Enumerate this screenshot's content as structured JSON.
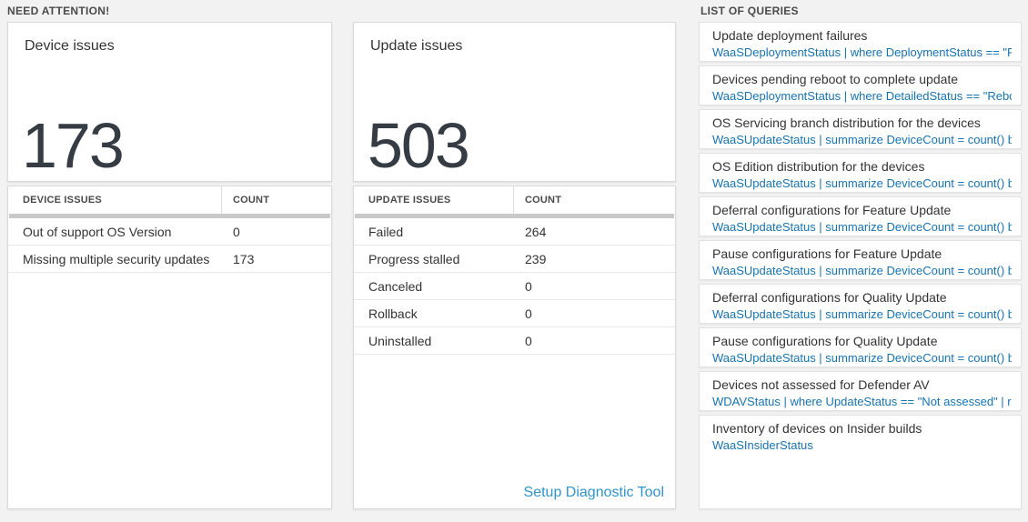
{
  "colors": {
    "page_bg": "#f2f2f2",
    "card_bg": "#ffffff",
    "text_dark": "#333333",
    "stat_number": "#363c43",
    "table_header_bar": "#c9c9c9",
    "query_blue": "#1574b5",
    "link_blue": "#2e95d3"
  },
  "sections": {
    "need_attention": "NEED ATTENTION!",
    "list_of_queries": "LIST OF QUERIES"
  },
  "tiles": [
    {
      "title": "Device issues",
      "value": "173"
    },
    {
      "title": "Update issues",
      "value": "503"
    }
  ],
  "tables": [
    {
      "headers": [
        "DEVICE ISSUES",
        "COUNT"
      ],
      "rows": [
        [
          "Out of support OS Version",
          "0"
        ],
        [
          "Missing multiple security updates",
          "173"
        ]
      ]
    },
    {
      "headers": [
        "UPDATE ISSUES",
        "COUNT"
      ],
      "rows": [
        [
          "Failed",
          "264"
        ],
        [
          "Progress stalled",
          "239"
        ],
        [
          "Canceled",
          "0"
        ],
        [
          "Rollback",
          "0"
        ],
        [
          "Uninstalled",
          "0"
        ]
      ],
      "footer_link": "Setup Diagnostic Tool"
    }
  ],
  "queries": [
    {
      "title": "Update deployment failures",
      "query": "WaaSDeploymentStatus | where DeploymentStatus == \"Failed\" |..."
    },
    {
      "title": "Devices pending reboot to complete update",
      "query": "WaaSDeploymentStatus | where DetailedStatus == \"Reboot pend..."
    },
    {
      "title": "OS Servicing branch distribution for the devices",
      "query": "WaaSUpdateStatus | summarize DeviceCount = count() by OSSer..."
    },
    {
      "title": "OS Edition distribution for the devices",
      "query": "WaaSUpdateStatus | summarize DeviceCount = count() by OSEdit..."
    },
    {
      "title": "Deferral configurations for Feature Update",
      "query": "WaaSUpdateStatus | summarize DeviceCount = count() by Featur..."
    },
    {
      "title": "Pause configurations for Feature Update",
      "query": "WaaSUpdateStatus | summarize DeviceCount = count() by Featur..."
    },
    {
      "title": "Deferral configurations for Quality Update",
      "query": "WaaSUpdateStatus | summarize DeviceCount = count() by Qualit..."
    },
    {
      "title": "Pause configurations for Quality Update",
      "query": "WaaSUpdateStatus | summarize DeviceCount = count() by Qualit..."
    },
    {
      "title": "Devices not assessed for Defender AV",
      "query": "WDAVStatus | where UpdateStatus == \"Not assessed\" | render ta..."
    },
    {
      "title": "Inventory of devices on Insider builds",
      "query": "WaaSInsiderStatus"
    }
  ]
}
